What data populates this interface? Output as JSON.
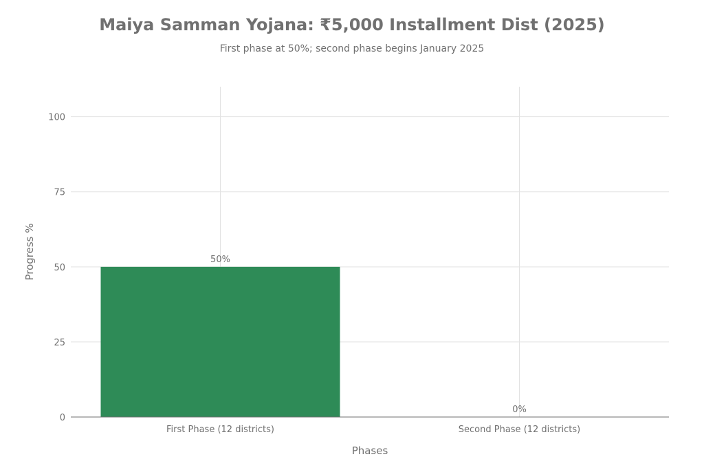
{
  "chart_data": {
    "type": "bar",
    "title": "Maiya Samman Yojana: ₹5,000 Installment Dist (2025)",
    "subtitle": "First phase at 50%; second phase begins January 2025",
    "xlabel": "Phases",
    "ylabel": "Progress %",
    "categories": [
      "First Phase (12 districts)",
      "Second Phase (12 districts)"
    ],
    "values": [
      50,
      0
    ],
    "data_labels": [
      "50%",
      "0%"
    ],
    "ylim": [
      0,
      110
    ],
    "yticks": [
      0,
      25,
      50,
      75,
      100
    ],
    "ytick_labels": [
      "0",
      "25",
      "50",
      "75",
      "100"
    ],
    "grid": true,
    "legend": "none",
    "colors": {
      "bar": "#2e8b57",
      "text": "#707070",
      "grid": "#e2e2e2",
      "axis": "#707070"
    }
  }
}
